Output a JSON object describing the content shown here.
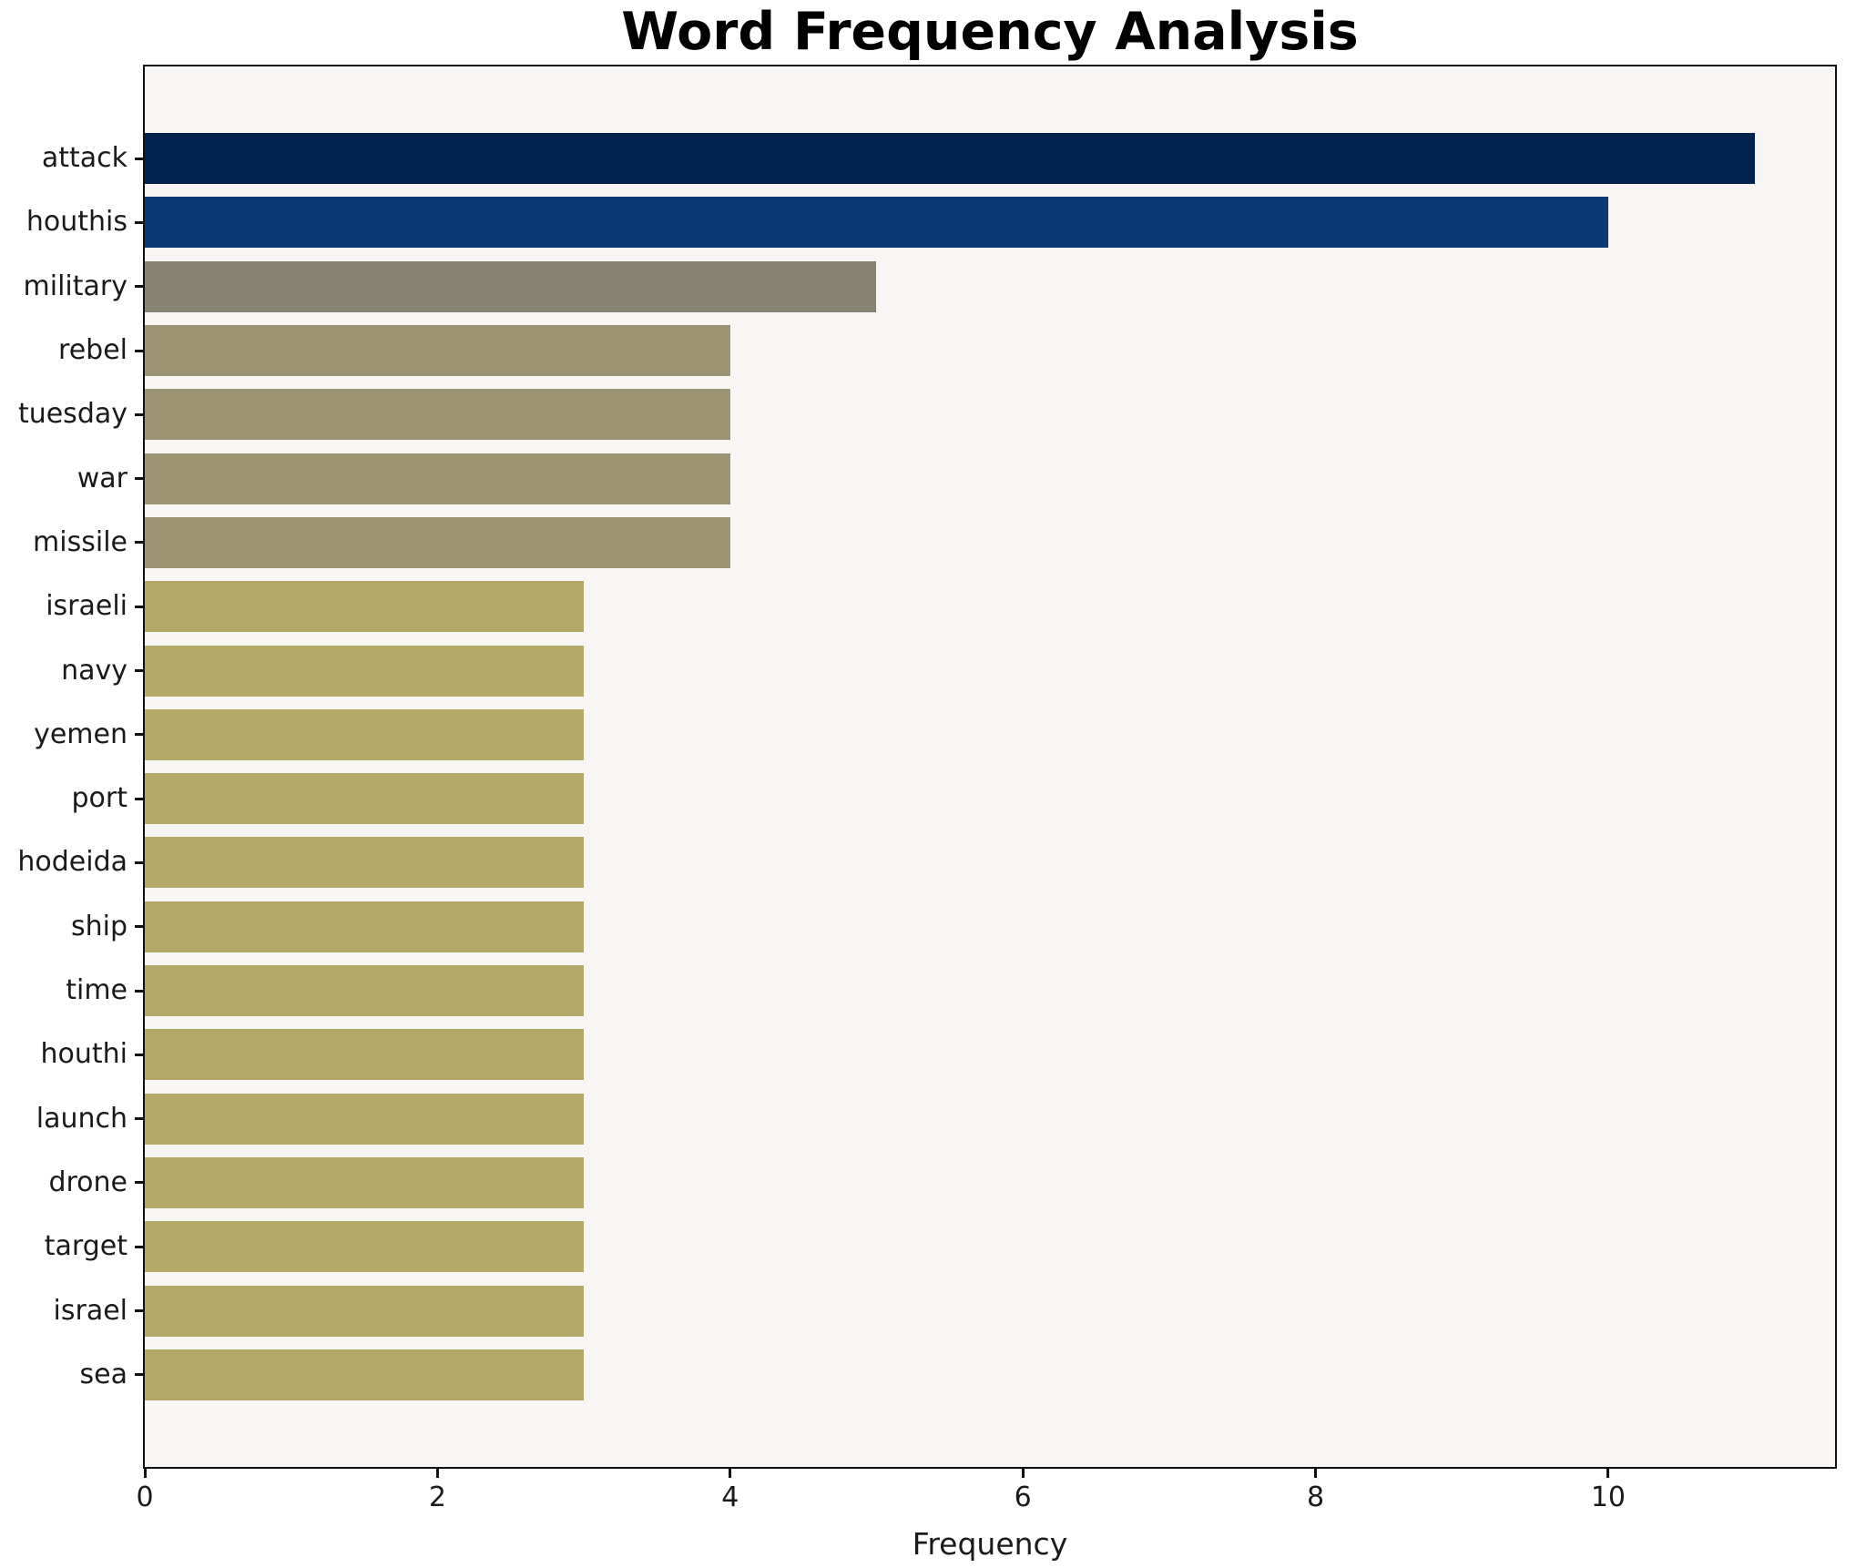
{
  "chart_data": {
    "type": "bar",
    "orientation": "horizontal",
    "title": "Word Frequency Analysis",
    "xlabel": "Frequency",
    "ylabel": "",
    "categories": [
      "attack",
      "houthis",
      "military",
      "rebel",
      "tuesday",
      "war",
      "missile",
      "israeli",
      "navy",
      "yemen",
      "port",
      "hodeida",
      "ship",
      "time",
      "houthi",
      "launch",
      "drone",
      "target",
      "israel",
      "sea"
    ],
    "values": [
      11,
      10,
      5,
      4,
      4,
      4,
      4,
      3,
      3,
      3,
      3,
      3,
      3,
      3,
      3,
      3,
      3,
      3,
      3,
      3
    ],
    "bar_colors": [
      "#03224d",
      "#0d3876",
      "#868370",
      "#9d9474",
      "#9d9474",
      "#9d9474",
      "#9d9474",
      "#b3a868",
      "#b3a868",
      "#b3a868",
      "#b3a868",
      "#b3a868",
      "#b3a868",
      "#b3a868",
      "#b3a868",
      "#b3a868",
      "#b3a868",
      "#b3a868",
      "#b3a868",
      "#b3a868"
    ],
    "xticks": [
      "0",
      "2",
      "4",
      "6",
      "8",
      "10"
    ],
    "xtick_values": [
      0,
      2,
      4,
      6,
      8,
      10
    ],
    "xlim": [
      0,
      11.55
    ],
    "grid": false,
    "legend": "none",
    "colors": {
      "figure_bg": "#ffffff",
      "plot_bg": "#f7f6f4",
      "spine": "#111111",
      "text": "#1a1a1a"
    }
  }
}
